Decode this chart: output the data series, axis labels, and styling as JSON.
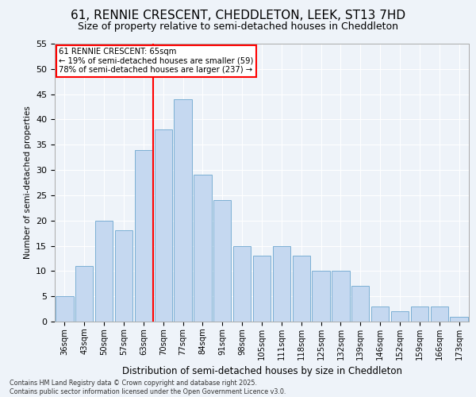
{
  "title": "61, RENNIE CRESCENT, CHEDDLETON, LEEK, ST13 7HD",
  "subtitle": "Size of property relative to semi-detached houses in Cheddleton",
  "xlabel": "Distribution of semi-detached houses by size in Cheddleton",
  "ylabel": "Number of semi-detached properties",
  "categories": [
    "36sqm",
    "43sqm",
    "50sqm",
    "57sqm",
    "63sqm",
    "70sqm",
    "77sqm",
    "84sqm",
    "91sqm",
    "98sqm",
    "105sqm",
    "111sqm",
    "118sqm",
    "125sqm",
    "132sqm",
    "139sqm",
    "146sqm",
    "152sqm",
    "159sqm",
    "166sqm",
    "173sqm"
  ],
  "values": [
    5,
    11,
    20,
    18,
    34,
    38,
    44,
    29,
    24,
    15,
    13,
    15,
    13,
    10,
    10,
    7,
    3,
    2,
    3,
    3,
    1
  ],
  "bar_color": "#c5d8f0",
  "bar_edgecolor": "#7bafd4",
  "redline_x": 4.5,
  "annotation_title": "61 RENNIE CRESCENT: 65sqm",
  "annotation_line1": "← 19% of semi-detached houses are smaller (59)",
  "annotation_line2": "78% of semi-detached houses are larger (237) →",
  "ylim": [
    0,
    55
  ],
  "yticks": [
    0,
    5,
    10,
    15,
    20,
    25,
    30,
    35,
    40,
    45,
    50,
    55
  ],
  "footer": "Contains HM Land Registry data © Crown copyright and database right 2025.\nContains public sector information licensed under the Open Government Licence v3.0.",
  "bg_color": "#eef3f9",
  "grid_color": "#ffffff",
  "title_fontsize": 11,
  "subtitle_fontsize": 9
}
